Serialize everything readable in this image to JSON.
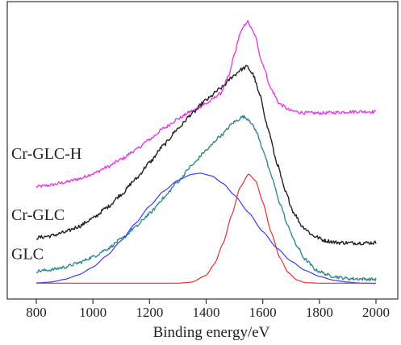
{
  "chart_data": {
    "type": "line",
    "xlabel": "Binding energy/eV",
    "ylabel": "",
    "xlim": [
      800,
      2000
    ],
    "ylim": [
      0,
      1
    ],
    "xticks": [
      800,
      1000,
      1200,
      1400,
      1600,
      1800,
      2000
    ],
    "grid": false,
    "series": [
      {
        "name": "Cr-GLC-H",
        "color": "#e040e0",
        "noise": 0.006,
        "points": [
          [
            800,
            0.357
          ],
          [
            850,
            0.363
          ],
          [
            900,
            0.373
          ],
          [
            950,
            0.386
          ],
          [
            1000,
            0.405
          ],
          [
            1050,
            0.429
          ],
          [
            1100,
            0.458
          ],
          [
            1150,
            0.492
          ],
          [
            1200,
            0.531
          ],
          [
            1250,
            0.572
          ],
          [
            1300,
            0.607
          ],
          [
            1350,
            0.636
          ],
          [
            1400,
            0.663
          ],
          [
            1450,
            0.699
          ],
          [
            1480,
            0.764
          ],
          [
            1500,
            0.845
          ],
          [
            1520,
            0.922
          ],
          [
            1545,
            0.966
          ],
          [
            1570,
            0.921
          ],
          [
            1600,
            0.808
          ],
          [
            1630,
            0.715
          ],
          [
            1660,
            0.661
          ],
          [
            1700,
            0.636
          ],
          [
            1750,
            0.629
          ],
          [
            1800,
            0.628
          ],
          [
            1850,
            0.63
          ],
          [
            1900,
            0.633
          ],
          [
            1950,
            0.634
          ],
          [
            2000,
            0.633
          ]
        ]
      },
      {
        "name": "Cr-GLC",
        "color": "#222222",
        "noise": 0.007,
        "points": [
          [
            800,
            0.169
          ],
          [
            850,
            0.176
          ],
          [
            900,
            0.189
          ],
          [
            950,
            0.211
          ],
          [
            1000,
            0.241
          ],
          [
            1050,
            0.281
          ],
          [
            1100,
            0.329
          ],
          [
            1150,
            0.384
          ],
          [
            1200,
            0.446
          ],
          [
            1250,
            0.51
          ],
          [
            1300,
            0.571
          ],
          [
            1350,
            0.626
          ],
          [
            1400,
            0.676
          ],
          [
            1450,
            0.718
          ],
          [
            1500,
            0.768
          ],
          [
            1520,
            0.787
          ],
          [
            1545,
            0.799
          ],
          [
            1565,
            0.772
          ],
          [
            1590,
            0.692
          ],
          [
            1620,
            0.566
          ],
          [
            1650,
            0.444
          ],
          [
            1680,
            0.338
          ],
          [
            1710,
            0.261
          ],
          [
            1740,
            0.211
          ],
          [
            1780,
            0.176
          ],
          [
            1820,
            0.159
          ],
          [
            1860,
            0.152
          ],
          [
            1920,
            0.15
          ],
          [
            2000,
            0.151
          ]
        ]
      },
      {
        "name": "GLC",
        "color": "#2e8b8b",
        "noise": 0.006,
        "points": [
          [
            800,
            0.046
          ],
          [
            850,
            0.051
          ],
          [
            900,
            0.061
          ],
          [
            950,
            0.077
          ],
          [
            1000,
            0.099
          ],
          [
            1050,
            0.128
          ],
          [
            1100,
            0.164
          ],
          [
            1150,
            0.208
          ],
          [
            1200,
            0.258
          ],
          [
            1250,
            0.316
          ],
          [
            1300,
            0.376
          ],
          [
            1350,
            0.436
          ],
          [
            1400,
            0.491
          ],
          [
            1450,
            0.544
          ],
          [
            1500,
            0.596
          ],
          [
            1530,
            0.615
          ],
          [
            1550,
            0.606
          ],
          [
            1575,
            0.566
          ],
          [
            1600,
            0.496
          ],
          [
            1630,
            0.398
          ],
          [
            1660,
            0.298
          ],
          [
            1690,
            0.209
          ],
          [
            1720,
            0.139
          ],
          [
            1750,
            0.089
          ],
          [
            1790,
            0.049
          ],
          [
            1840,
            0.029
          ],
          [
            1900,
            0.019
          ],
          [
            2000,
            0.016
          ]
        ]
      },
      {
        "color": "#3a3aff",
        "noise": 0,
        "points": [
          [
            800,
            0.003
          ],
          [
            850,
            0.006
          ],
          [
            900,
            0.016
          ],
          [
            950,
            0.033
          ],
          [
            1000,
            0.061
          ],
          [
            1050,
            0.104
          ],
          [
            1100,
            0.159
          ],
          [
            1150,
            0.222
          ],
          [
            1200,
            0.286
          ],
          [
            1250,
            0.341
          ],
          [
            1300,
            0.381
          ],
          [
            1350,
            0.403
          ],
          [
            1380,
            0.407
          ],
          [
            1420,
            0.397
          ],
          [
            1460,
            0.369
          ],
          [
            1500,
            0.326
          ],
          [
            1550,
            0.262
          ],
          [
            1600,
            0.192
          ],
          [
            1650,
            0.131
          ],
          [
            1700,
            0.083
          ],
          [
            1750,
            0.049
          ],
          [
            1800,
            0.027
          ],
          [
            1850,
            0.013
          ],
          [
            1900,
            0.006
          ],
          [
            1950,
            0.002
          ],
          [
            2000,
            0.001
          ]
        ]
      },
      {
        "color": "#e03030",
        "noise": 0,
        "points": [
          [
            800,
            0.002
          ],
          [
            1300,
            0.002
          ],
          [
            1350,
            0.006
          ],
          [
            1400,
            0.031
          ],
          [
            1430,
            0.074
          ],
          [
            1460,
            0.149
          ],
          [
            1490,
            0.252
          ],
          [
            1520,
            0.355
          ],
          [
            1550,
            0.404
          ],
          [
            1575,
            0.379
          ],
          [
            1600,
            0.301
          ],
          [
            1630,
            0.189
          ],
          [
            1660,
            0.096
          ],
          [
            1690,
            0.041
          ],
          [
            1720,
            0.014
          ],
          [
            1750,
            0.004
          ],
          [
            1800,
            0.002
          ],
          [
            2000,
            0.002
          ]
        ]
      }
    ],
    "annotations": [
      {
        "text": "Cr-GLC-H",
        "x": 800,
        "y": 0.46
      },
      {
        "text": "Cr-GLC",
        "x": 800,
        "y": 0.235
      },
      {
        "text": "GLC",
        "x": 800,
        "y": 0.09
      }
    ]
  }
}
